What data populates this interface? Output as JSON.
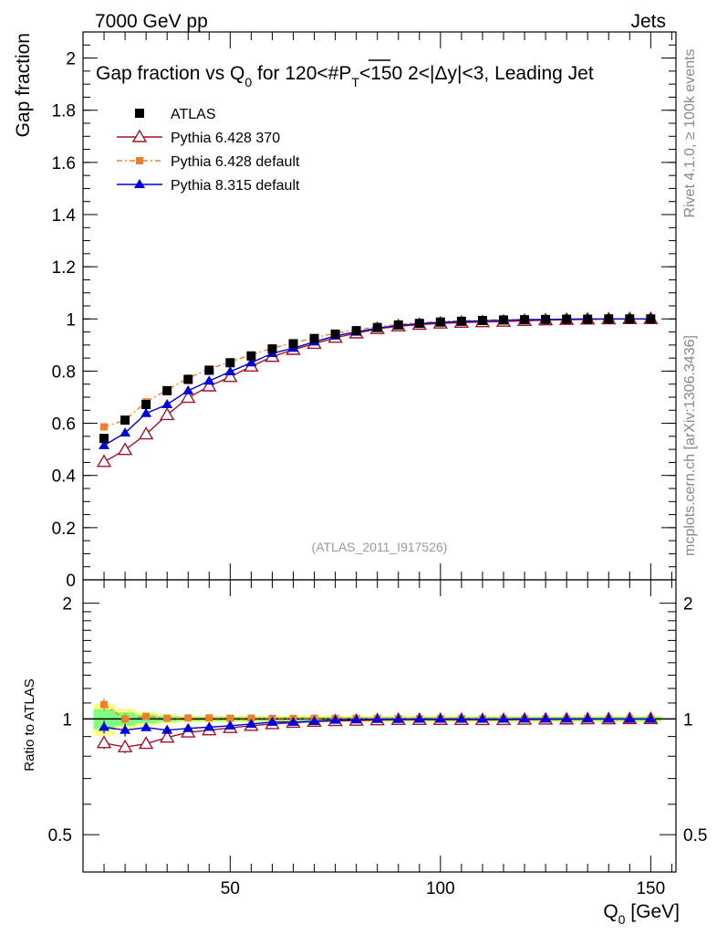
{
  "header": {
    "left_label": "7000 GeV pp",
    "right_label": "Jets",
    "side_label_top": "Rivet 4.1.0, ≥ 100k events",
    "side_label_bottom": "mcplots.cern.ch [arXiv:1306.3436]"
  },
  "chart_data": [
    {
      "type": "scatter",
      "panel": "main",
      "title": "Gap fraction vs Q_0 for 120<#P_T<150  2<|Δy|<3, Leading Jet",
      "title_parts": {
        "pre": "Gap fraction vs Q",
        "sub0": "0",
        "mid": " for 120<#",
        "P": "P",
        "subT": "T",
        "post": "<150  2<|Δy|<3, Leading Jet"
      },
      "xlabel": "Q_0 [GeV]",
      "ylabel": "Gap fraction",
      "watermark": "(ATLAS_2011_I917526)",
      "xlim": [
        15,
        156
      ],
      "ylim": [
        0,
        2.1
      ],
      "yticks": [
        "0",
        "0.2",
        "0.4",
        "0.6",
        "0.8",
        "1",
        "1.2",
        "1.4",
        "1.6",
        "1.8",
        "2"
      ],
      "legend_position": "top-left",
      "x": [
        20,
        25,
        30,
        35,
        40,
        45,
        50,
        55,
        60,
        65,
        70,
        75,
        80,
        85,
        90,
        95,
        100,
        105,
        110,
        115,
        120,
        125,
        130,
        135,
        140,
        145,
        150
      ],
      "series": [
        {
          "name": "ATLAS",
          "color": "#000000",
          "marker": "square",
          "values": [
            0.542,
            0.612,
            0.672,
            0.725,
            0.768,
            0.803,
            0.832,
            0.858,
            0.885,
            0.905,
            0.925,
            0.942,
            0.955,
            0.967,
            0.977,
            0.983,
            0.988,
            0.991,
            0.994,
            0.996,
            0.997,
            0.998,
            0.999,
            0.999,
            1.0,
            1.0,
            1.0
          ]
        },
        {
          "name": "Pythia 6.428 370",
          "color": "#a0142a",
          "marker": "open-triangle",
          "values": [
            0.452,
            0.498,
            0.558,
            0.632,
            0.698,
            0.742,
            0.778,
            0.818,
            0.855,
            0.882,
            0.905,
            0.928,
            0.945,
            0.962,
            0.972,
            0.978,
            0.983,
            0.986,
            0.988,
            0.99,
            0.993,
            0.995,
            0.997,
            0.998,
            0.999,
            1.0,
            1.0
          ]
        },
        {
          "name": "Pythia 6.428 default",
          "color": "#f07f2b",
          "marker": "small-square",
          "line": "dashdot",
          "values": [
            0.586,
            0.612,
            0.682,
            0.728,
            0.773,
            0.808,
            0.835,
            0.862,
            0.888,
            0.908,
            0.928,
            0.945,
            0.958,
            0.97,
            0.979,
            0.985,
            0.99,
            0.993,
            0.995,
            0.997,
            0.998,
            0.999,
            0.999,
            1.0,
            1.0,
            1.0,
            1.0
          ]
        },
        {
          "name": "Pythia 8.315 default",
          "color": "#0000d8",
          "marker": "filled-triangle",
          "values": [
            0.515,
            0.563,
            0.638,
            0.672,
            0.725,
            0.762,
            0.798,
            0.832,
            0.868,
            0.888,
            0.912,
            0.935,
            0.95,
            0.965,
            0.975,
            0.982,
            0.987,
            0.99,
            0.993,
            0.995,
            0.997,
            0.998,
            0.999,
            1.0,
            1.0,
            1.0,
            1.0
          ]
        }
      ]
    },
    {
      "type": "scatter",
      "panel": "ratio",
      "xlabel": "Q_0 [GeV]",
      "ylabel": "Ratio to ATLAS",
      "xlim": [
        15,
        156
      ],
      "ylim": [
        0.4,
        2.3
      ],
      "yscale": "log",
      "yticks": [
        "0.5",
        "1",
        "2"
      ],
      "xticks": [
        "50",
        "100",
        "150"
      ],
      "band_color": "#ffff80",
      "band_inner_color": "#80ff80",
      "x": [
        20,
        25,
        30,
        35,
        40,
        45,
        50,
        55,
        60,
        65,
        70,
        75,
        80,
        85,
        90,
        95,
        100,
        105,
        110,
        115,
        120,
        125,
        130,
        135,
        140,
        145,
        150
      ],
      "series": [
        {
          "name": "Pythia 6.428 370",
          "values": [
            0.866,
            0.845,
            0.862,
            0.895,
            0.923,
            0.935,
            0.948,
            0.96,
            0.97,
            0.978,
            0.984,
            0.988,
            0.99,
            0.993,
            0.995,
            0.995,
            0.995,
            0.995,
            0.994,
            0.994,
            0.996,
            0.997,
            0.998,
            0.999,
            0.999,
            1.0,
            1.0
          ]
        },
        {
          "name": "Pythia 6.428 default",
          "values": [
            1.09,
            1.0,
            1.015,
            1.004,
            1.006,
            1.006,
            1.004,
            1.005,
            1.003,
            1.003,
            1.003,
            1.003,
            1.003,
            1.003,
            1.002,
            1.002,
            1.002,
            1.002,
            1.001,
            1.001,
            1.001,
            1.001,
            1.0,
            1.001,
            1.0,
            1.0,
            1.0
          ]
        },
        {
          "name": "Pythia 8.315 default",
          "values": [
            0.952,
            0.935,
            0.95,
            0.935,
            0.945,
            0.952,
            0.96,
            0.97,
            0.981,
            0.981,
            0.986,
            0.993,
            0.995,
            0.998,
            0.998,
            0.999,
            0.999,
            0.999,
            0.999,
            0.999,
            1.0,
            1.0,
            1.0,
            1.001,
            1.0,
            1.0,
            1.0
          ]
        }
      ]
    }
  ]
}
